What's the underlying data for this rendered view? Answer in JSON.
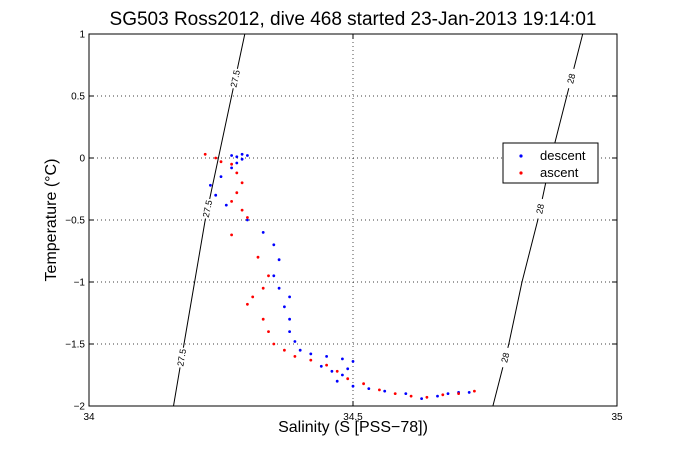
{
  "chart_data": {
    "type": "scatter",
    "title": "SG503 Ross2012, dive 468 started 23-Jan-2013 19:14:01",
    "xlabel": "Salinity (S [PSS−78])",
    "ylabel": "Temperature (°C)",
    "xlim": [
      34,
      35
    ],
    "ylim": [
      -2,
      1
    ],
    "xticks": [
      34,
      34.5,
      35
    ],
    "xtick_labels": [
      "34",
      "34.5",
      "35"
    ],
    "yticks": [
      1,
      0.5,
      0,
      -0.5,
      -1,
      -1.5,
      -2
    ],
    "ytick_labels": [
      "1",
      "0.5",
      "0",
      "−0.5",
      "−1",
      "−1.5",
      "−2"
    ],
    "grid": true,
    "legend": {
      "placement": "right",
      "entries": [
        "descent",
        "ascent"
      ]
    },
    "contour_labels": [
      "27.5",
      "27.5",
      "27.5",
      "28",
      "28",
      "28"
    ],
    "contours": [
      {
        "level": 27.5,
        "points": [
          [
            34.295,
            1.0
          ],
          [
            34.27,
            0.5
          ],
          [
            34.245,
            0.0
          ],
          [
            34.22,
            -0.5
          ],
          [
            34.2,
            -1.0
          ],
          [
            34.18,
            -1.5
          ],
          [
            34.16,
            -2.0
          ]
        ]
      },
      {
        "level": 28,
        "points": [
          [
            34.935,
            1.0
          ],
          [
            34.905,
            0.5
          ],
          [
            34.875,
            0.0
          ],
          [
            34.85,
            -0.5
          ],
          [
            34.82,
            -1.0
          ],
          [
            34.795,
            -1.5
          ],
          [
            34.765,
            -2.0
          ]
        ]
      }
    ],
    "series": [
      {
        "name": "descent",
        "color": "#0000ff",
        "points": [
          [
            34.27,
            0.02
          ],
          [
            34.28,
            0.01
          ],
          [
            34.29,
            0.03
          ],
          [
            34.3,
            0.02
          ],
          [
            34.29,
            -0.01
          ],
          [
            34.28,
            -0.04
          ],
          [
            34.27,
            -0.08
          ],
          [
            34.25,
            -0.15
          ],
          [
            34.23,
            -0.22
          ],
          [
            34.24,
            -0.3
          ],
          [
            34.26,
            -0.38
          ],
          [
            34.3,
            -0.5
          ],
          [
            34.33,
            -0.6
          ],
          [
            34.35,
            -0.7
          ],
          [
            34.36,
            -0.82
          ],
          [
            34.35,
            -0.95
          ],
          [
            34.36,
            -1.05
          ],
          [
            34.38,
            -1.12
          ],
          [
            34.37,
            -1.2
          ],
          [
            34.38,
            -1.3
          ],
          [
            34.38,
            -1.4
          ],
          [
            34.39,
            -1.48
          ],
          [
            34.4,
            -1.55
          ],
          [
            34.42,
            -1.58
          ],
          [
            34.45,
            -1.6
          ],
          [
            34.48,
            -1.62
          ],
          [
            34.5,
            -1.64
          ],
          [
            34.49,
            -1.7
          ],
          [
            34.48,
            -1.75
          ],
          [
            34.46,
            -1.72
          ],
          [
            34.44,
            -1.68
          ],
          [
            34.47,
            -1.8
          ],
          [
            34.5,
            -1.84
          ],
          [
            34.53,
            -1.86
          ],
          [
            34.56,
            -1.88
          ],
          [
            34.6,
            -1.9
          ],
          [
            34.63,
            -1.94
          ],
          [
            34.66,
            -1.92
          ],
          [
            34.68,
            -1.9
          ],
          [
            34.7,
            -1.89
          ],
          [
            34.72,
            -1.89
          ]
        ]
      },
      {
        "name": "ascent",
        "color": "#ff0000",
        "points": [
          [
            34.22,
            0.03
          ],
          [
            34.24,
            0.0
          ],
          [
            34.25,
            -0.03
          ],
          [
            34.27,
            -0.05
          ],
          [
            34.28,
            -0.12
          ],
          [
            34.29,
            -0.2
          ],
          [
            34.28,
            -0.28
          ],
          [
            34.27,
            -0.35
          ],
          [
            34.29,
            -0.42
          ],
          [
            34.3,
            -0.48
          ],
          [
            34.27,
            -0.62
          ],
          [
            34.32,
            -0.8
          ],
          [
            34.34,
            -0.95
          ],
          [
            34.33,
            -1.05
          ],
          [
            34.31,
            -1.12
          ],
          [
            34.3,
            -1.18
          ],
          [
            34.33,
            -1.3
          ],
          [
            34.34,
            -1.4
          ],
          [
            34.35,
            -1.5
          ],
          [
            34.37,
            -1.55
          ],
          [
            34.39,
            -1.6
          ],
          [
            34.42,
            -1.63
          ],
          [
            34.45,
            -1.67
          ],
          [
            34.47,
            -1.72
          ],
          [
            34.49,
            -1.78
          ],
          [
            34.52,
            -1.82
          ],
          [
            34.55,
            -1.87
          ],
          [
            34.58,
            -1.9
          ],
          [
            34.61,
            -1.92
          ],
          [
            34.64,
            -1.93
          ],
          [
            34.67,
            -1.91
          ],
          [
            34.7,
            -1.9
          ],
          [
            34.73,
            -1.88
          ]
        ]
      }
    ]
  }
}
